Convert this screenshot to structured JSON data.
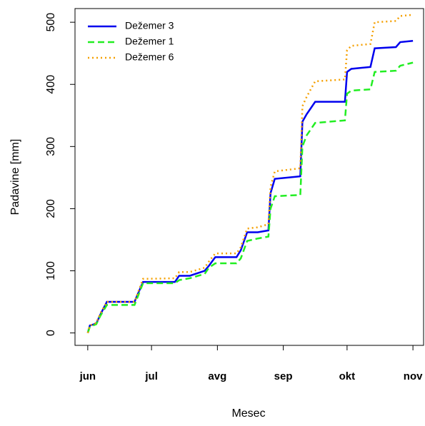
{
  "chart_data": {
    "type": "line",
    "xlabel": "Mesec",
    "ylabel": "Padavine [mm]",
    "x": [
      0,
      1,
      4,
      6,
      9,
      22,
      26,
      41,
      43,
      48,
      55,
      57,
      60,
      70,
      72,
      75,
      80,
      85,
      86,
      88,
      100,
      101,
      103,
      107,
      121,
      122,
      124,
      133,
      135,
      145,
      147,
      153
    ],
    "series": [
      {
        "name": "Dežemer 3",
        "color": "#0000ee",
        "dash": "solid",
        "values": [
          0,
          12,
          15,
          30,
          50,
          50,
          82,
          82,
          92,
          92,
          100,
          108,
          122,
          122,
          133,
          162,
          162,
          165,
          225,
          248,
          252,
          340,
          352,
          372,
          372,
          420,
          425,
          428,
          458,
          460,
          468,
          470
        ]
      },
      {
        "name": "Dežemer 1",
        "color": "#22ee22",
        "dash": "dashed",
        "values": [
          0,
          10,
          14,
          28,
          45,
          45,
          80,
          80,
          85,
          88,
          95,
          105,
          112,
          112,
          120,
          148,
          152,
          155,
          200,
          220,
          222,
          300,
          318,
          338,
          342,
          385,
          390,
          392,
          420,
          422,
          430,
          435
        ]
      },
      {
        "name": "Dežemer 6",
        "color": "#f5a000",
        "dash": "dotted",
        "values": [
          0,
          12,
          16,
          32,
          50,
          50,
          87,
          88,
          98,
          98,
          105,
          115,
          128,
          128,
          138,
          168,
          170,
          175,
          235,
          260,
          265,
          365,
          380,
          405,
          408,
          455,
          462,
          465,
          500,
          502,
          510,
          512
        ]
      }
    ],
    "xlim": [
      -6,
      158
    ],
    "xticks": [
      {
        "value": 0,
        "label": "jun"
      },
      {
        "value": 30,
        "label": "jul"
      },
      {
        "value": 61,
        "label": "avg"
      },
      {
        "value": 92,
        "label": "sep"
      },
      {
        "value": 122,
        "label": "okt"
      },
      {
        "value": 153,
        "label": "nov"
      }
    ],
    "ylim": [
      -20,
      522
    ],
    "yticks": [
      0,
      100,
      200,
      300,
      400,
      500
    ],
    "legend": "top-left"
  }
}
